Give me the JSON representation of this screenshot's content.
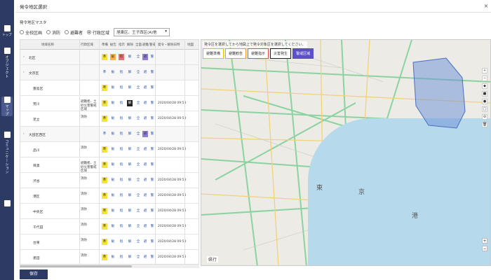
{
  "sidebar": {
    "items": [
      {
        "label": "トップ",
        "icon": "home-icon"
      },
      {
        "label": "オブジェクト",
        "icon": "grid-icon"
      },
      {
        "label": "マップ",
        "icon": "map-icon"
      },
      {
        "label": "コミュニケーション",
        "icon": "chat-icon"
      },
      {
        "label": "",
        "icon": "settings-icon"
      }
    ]
  },
  "dialog": {
    "title": "発令地区選択",
    "close": "×",
    "subtitle": "発令地区マスタ",
    "radios": [
      "全校区画",
      "消防",
      "避難者",
      "行政区域"
    ],
    "select_value": "旭東区、王子西区(A)他",
    "save_label": "保存"
  },
  "table": {
    "headers": [
      "地域名称",
      "行政区域",
      "準備",
      "勧告",
      "指示",
      "解除",
      "全面",
      "避難",
      "警戒",
      "発令・解除日時",
      "地図"
    ],
    "rows": [
      {
        "expand": "›",
        "name": "北区",
        "type": "",
        "time": "",
        "group": true
      },
      {
        "expand": "›",
        "name": "文京区",
        "type": "",
        "time": "",
        "group": true
      },
      {
        "expand": "",
        "name": "豊島区",
        "type": "",
        "time": "",
        "group": false
      },
      {
        "expand": "",
        "name": "荒川",
        "type": "避難者、土砂災害警戒区域",
        "time": "2020/04/28 09:53",
        "group": false
      },
      {
        "expand": "",
        "name": "足立",
        "type": "消防",
        "time": "2020/04/28 09:53",
        "group": false
      },
      {
        "expand": "›",
        "name": "大田区西区",
        "type": "",
        "time": "",
        "group": true
      },
      {
        "expand": "",
        "name": "品川",
        "type": "消防",
        "time": "2020/04/28 09:53",
        "group": false
      },
      {
        "expand": "",
        "name": "目黒",
        "type": "避難者、土砂災害警戒区域",
        "time": "",
        "group": false
      },
      {
        "expand": "",
        "name": "渋谷",
        "type": "消防",
        "time": "2020/04/28 09:53",
        "group": false
      },
      {
        "expand": "",
        "name": "港区",
        "type": "消防",
        "time": "2020/04/28 09:53",
        "group": false
      },
      {
        "expand": "",
        "name": "中央区",
        "type": "消防",
        "time": "2020/04/28 09:53",
        "group": false
      },
      {
        "expand": "",
        "name": "千代田",
        "type": "消防",
        "time": "2020/04/28 09:53",
        "group": false
      },
      {
        "expand": "",
        "name": "台東",
        "type": "消防",
        "time": "2020/04/28 09:53",
        "group": false
      },
      {
        "expand": "",
        "name": "墨田",
        "type": "消防",
        "time": "2020/04/28 09:53",
        "group": false
      }
    ],
    "cell_glyphs": [
      "準",
      "勧",
      "指",
      "解",
      "全",
      "避",
      "警"
    ]
  },
  "map": {
    "instruction": "発令区を選択してから地図上で発令対象区を選択してください。",
    "legend": [
      "避難準備",
      "避難勧告",
      "避難指示",
      "災害発生",
      "警戒区域"
    ],
    "footer": "県行",
    "labels": [
      "東",
      "京",
      "港"
    ],
    "tools": [
      "＋",
      "−",
      "◆",
      "■",
      "●",
      "□",
      "⊘",
      "🗑"
    ],
    "zoom": [
      "+",
      "−"
    ],
    "poly_color": "#6a8fd8"
  },
  "colors": {
    "accent": "#2c3a64",
    "yellow": "#f5e33b",
    "orange": "#f6b44a",
    "red": "#e67373",
    "purple": "#8f7ed8"
  }
}
